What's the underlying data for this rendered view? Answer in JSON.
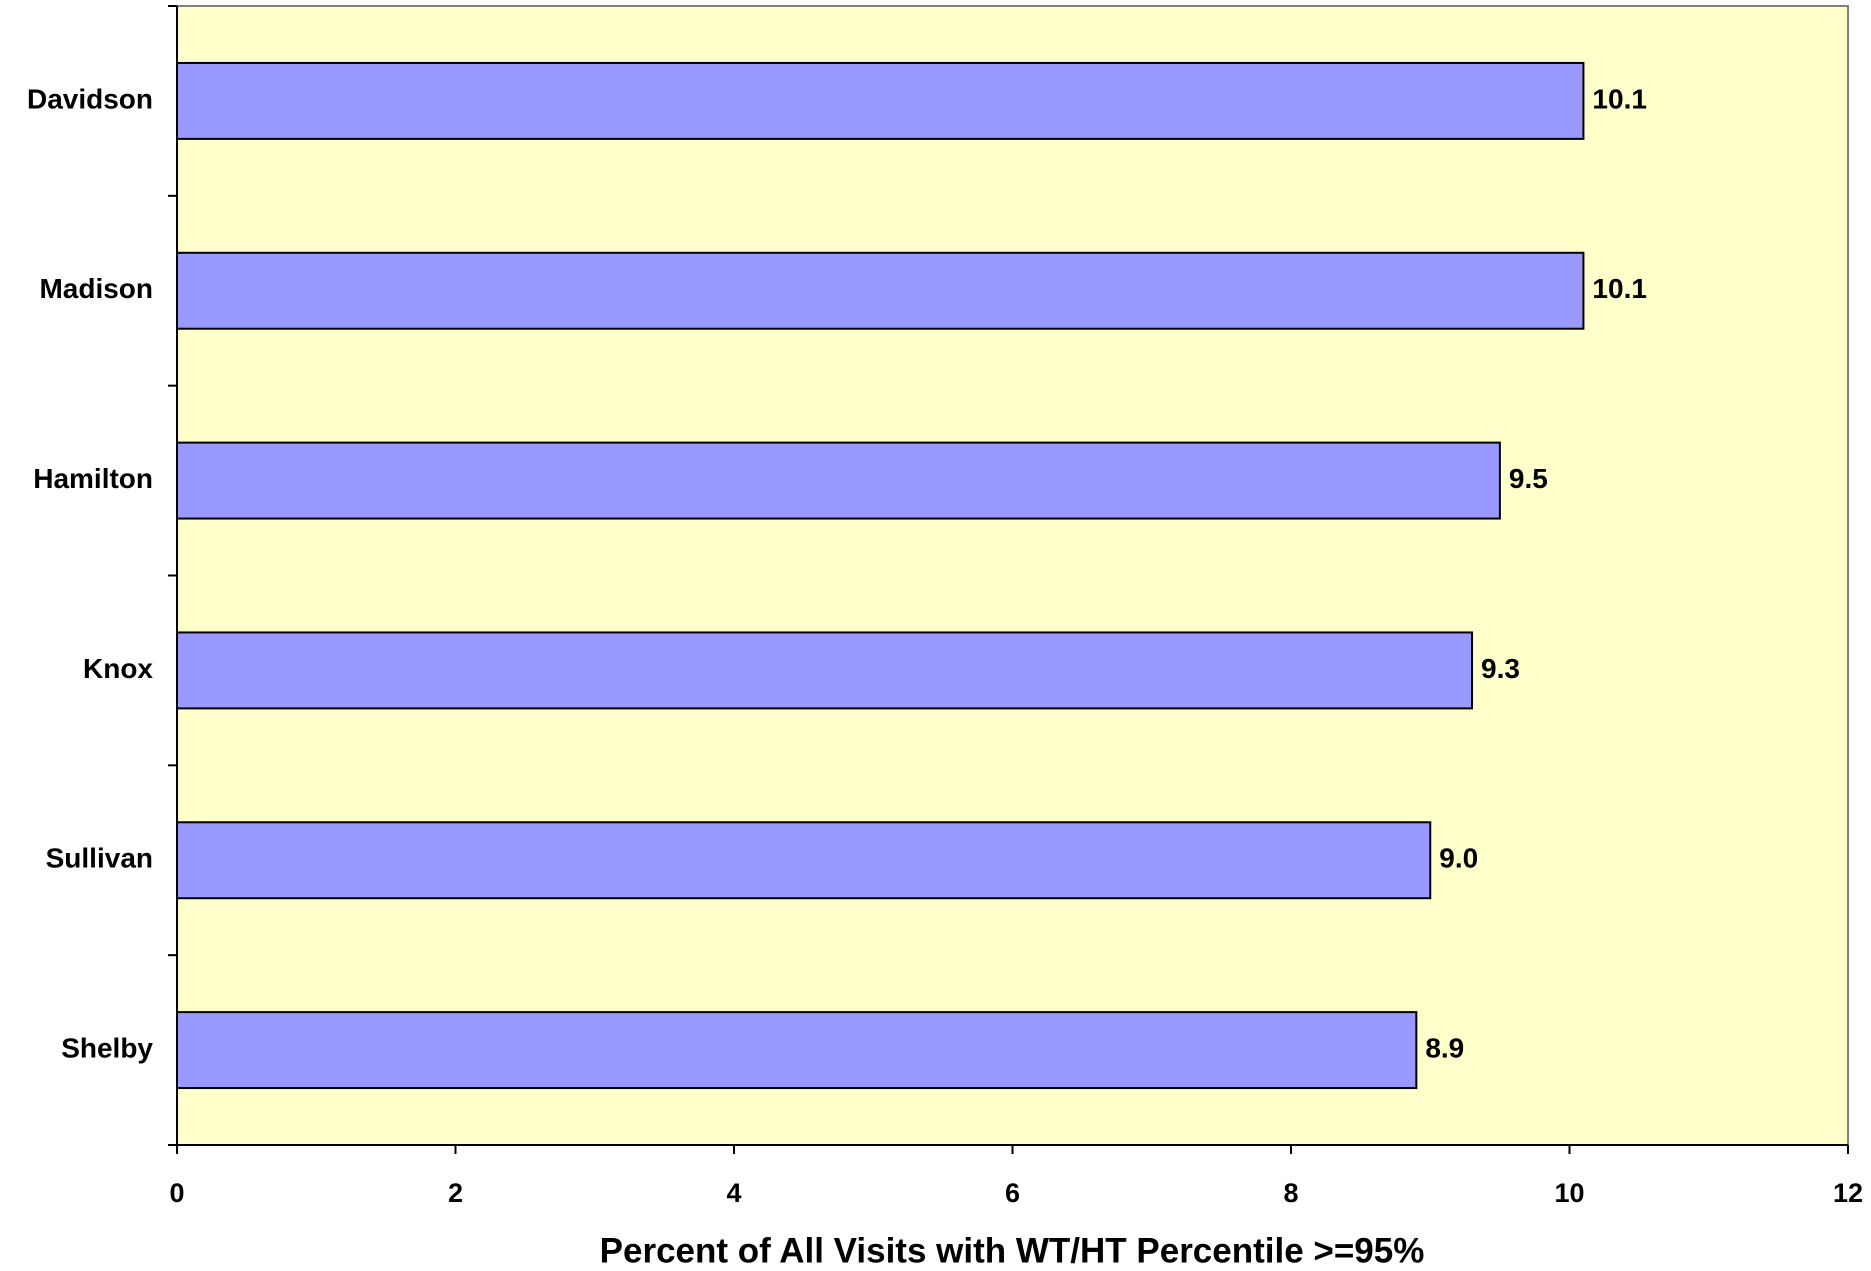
{
  "chart_data": {
    "type": "hbar",
    "x_label": "Percent of All Visits with WT/HT Percentile >=95%",
    "categories": [
      "Davidson",
      "Madison",
      "Hamilton",
      "Knox",
      "Sullivan",
      "Shelby"
    ],
    "values": [
      10.1,
      10.1,
      9.5,
      9.3,
      9.0,
      8.9
    ],
    "value_labels": [
      "10.1",
      "10.1",
      "9.5",
      "9.3",
      "9.0",
      "8.9"
    ],
    "color": "#9999ff",
    "background": "#ffffcc",
    "xlim": [
      0,
      12
    ],
    "xticks": [
      0,
      2,
      4,
      6,
      8,
      10,
      12
    ],
    "grid": false
  }
}
